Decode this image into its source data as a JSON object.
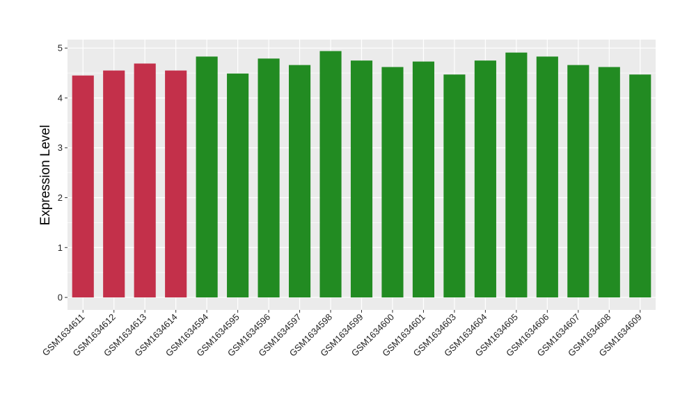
{
  "chart_data": {
    "type": "bar",
    "title": "",
    "xlabel": "",
    "ylabel": "Expression Level",
    "ylim": [
      -0.25,
      5.17
    ],
    "yticks": [
      0,
      1,
      2,
      3,
      4,
      5
    ],
    "grid": true,
    "legend": "none",
    "categories": [
      "GSM1634611",
      "GSM1634612",
      "GSM1634613",
      "GSM1634614",
      "GSM1634594",
      "GSM1634595",
      "GSM1634596",
      "GSM1634597",
      "GSM1634598",
      "GSM1634599",
      "GSM1634600",
      "GSM1634601",
      "GSM1634603",
      "GSM1634604",
      "GSM1634605",
      "GSM1634606",
      "GSM1634607",
      "GSM1634608",
      "GSM1634609"
    ],
    "values": [
      4.45,
      4.55,
      4.69,
      4.55,
      4.83,
      4.49,
      4.79,
      4.66,
      4.94,
      4.75,
      4.62,
      4.73,
      4.47,
      4.75,
      4.91,
      4.83,
      4.66,
      4.62,
      4.47
    ],
    "groups": [
      "g1",
      "g1",
      "g1",
      "g1",
      "g2",
      "g2",
      "g2",
      "g2",
      "g2",
      "g2",
      "g2",
      "g2",
      "g2",
      "g2",
      "g2",
      "g2",
      "g2",
      "g2",
      "g2"
    ],
    "colors": {
      "g1": "#C3304A",
      "g2": "#228B22",
      "panel": "#EBEBEB",
      "grid": "#FFFFFF"
    }
  }
}
